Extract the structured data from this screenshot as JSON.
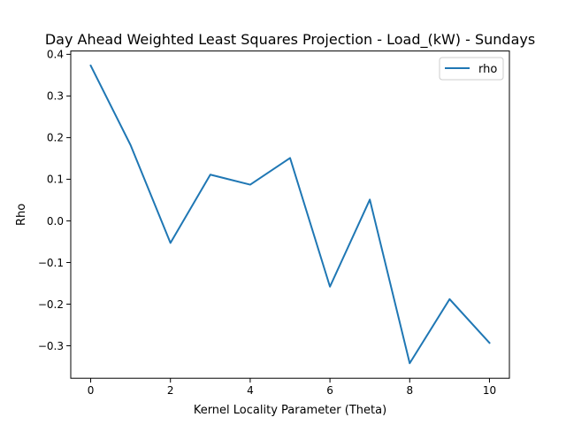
{
  "chart_data": {
    "type": "line",
    "title": "Day Ahead Weighted Least Squares Projection - Load_(kW) - Sundays",
    "xlabel": "Kernel Locality Parameter (Theta)",
    "ylabel": "Rho",
    "xlim": [
      -0.5,
      10.5
    ],
    "ylim": [
      -0.378,
      0.408
    ],
    "xticks": [
      0,
      2,
      4,
      6,
      8,
      10
    ],
    "yticks": [
      0.4,
      0.3,
      0.2,
      0.1,
      0.0,
      -0.1,
      -0.2,
      -0.3
    ],
    "xtick_labels": [
      "0",
      "2",
      "4",
      "6",
      "8",
      "10"
    ],
    "ytick_labels": [
      "0.4",
      "0.3",
      "0.2",
      "0.1",
      "0.0",
      "−0.1",
      "−0.2",
      "−0.3"
    ],
    "grid": false,
    "legend_position": "top-right",
    "x": [
      0,
      1,
      2,
      3,
      4,
      5,
      6,
      7,
      8,
      9,
      10
    ],
    "series": [
      {
        "name": "rho",
        "color": "#1f77b4",
        "values": [
          0.373,
          0.182,
          -0.053,
          0.111,
          0.087,
          0.151,
          -0.158,
          0.051,
          -0.342,
          -0.188,
          -0.293
        ]
      }
    ]
  }
}
